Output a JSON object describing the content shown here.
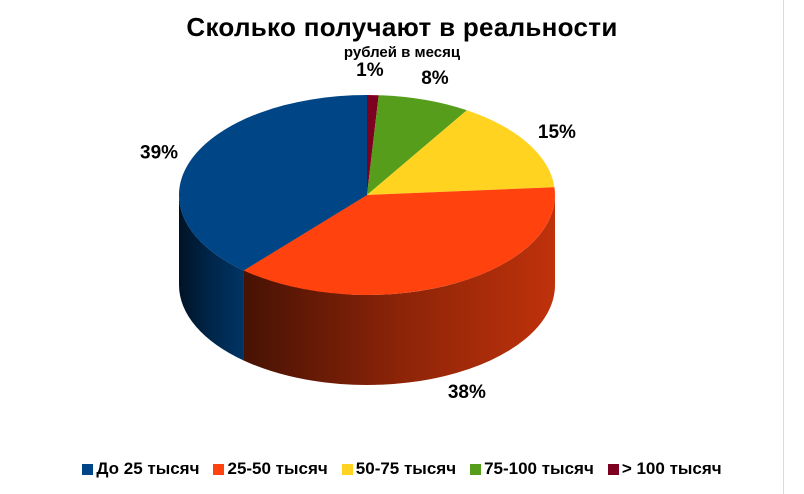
{
  "chart_data": {
    "type": "pie",
    "title": "Сколько получают в реальности",
    "subtitle": "рублей в месяц",
    "categories": [
      "До 25 тысяч",
      "25-50 тысяч",
      "50-75 тысяч",
      "75-100 тысяч",
      "> 100 тысяч"
    ],
    "values": [
      39,
      38,
      15,
      8,
      1
    ],
    "labels": [
      "39%",
      "38%",
      "15%",
      "8%",
      "1%"
    ],
    "colors": [
      "#004586",
      "#ff420e",
      "#ffd320",
      "#579d1c",
      "#7e0021"
    ],
    "legend_position": "bottom"
  }
}
